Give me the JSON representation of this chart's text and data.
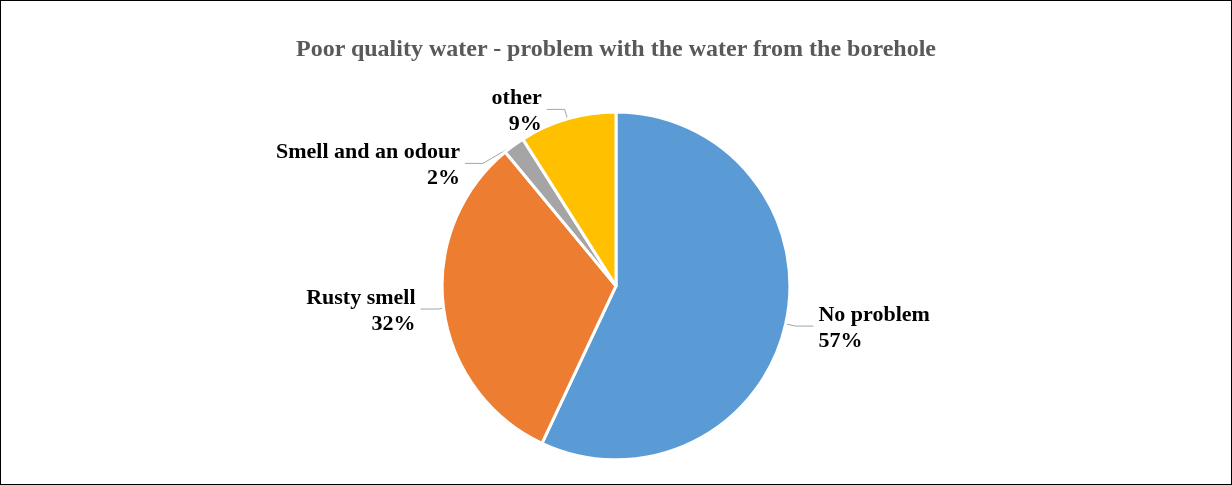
{
  "chart_data": {
    "type": "pie",
    "title": "Poor quality water - problem with the water from the borehole",
    "categories": [
      "No problem",
      "Rusty smell",
      "Smell and an odour",
      "other"
    ],
    "values": [
      57,
      32,
      2,
      9
    ],
    "colors": [
      "#5b9bd5",
      "#ed7d31",
      "#a5a5a5",
      "#ffc000"
    ],
    "value_labels": [
      "57%",
      "32%",
      "2%",
      "9%"
    ],
    "legend": false
  }
}
